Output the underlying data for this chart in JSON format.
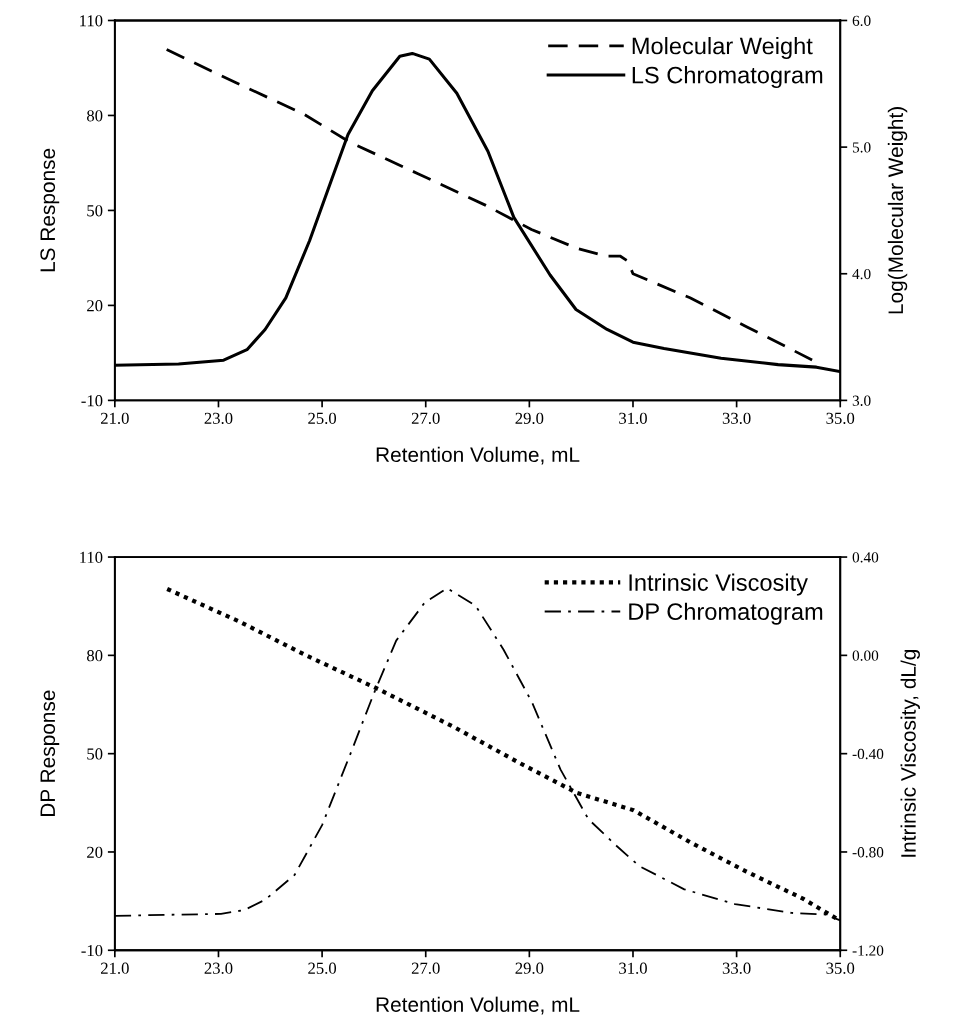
{
  "chart_data": [
    {
      "type": "line",
      "xlabel": "Retention Volume, mL",
      "ylabel": "LS Response",
      "y2label": "Log(Molecular Weight)",
      "legend": "top right",
      "grid": false,
      "marker": "none",
      "xlim": [
        21,
        35
      ],
      "xticks": [
        {
          "value": 21,
          "label": "21.0"
        },
        {
          "value": 23,
          "label": "23.0"
        },
        {
          "value": 25,
          "label": "25.0"
        },
        {
          "value": 27,
          "label": "27.0"
        },
        {
          "value": 29,
          "label": "29.0"
        },
        {
          "value": 31,
          "label": "31.0"
        },
        {
          "value": 33,
          "label": "33.0"
        },
        {
          "value": 35,
          "label": "35.0"
        }
      ],
      "ylim": [
        -10,
        110
      ],
      "yticks": [
        -10,
        20,
        50,
        80,
        110
      ],
      "y2lim": [
        3.0,
        6.0
      ],
      "y2ticks": [
        {
          "value": 3,
          "label": "3.0"
        },
        {
          "value": 4,
          "label": "4.0"
        },
        {
          "value": 5,
          "label": "5.0"
        },
        {
          "value": 6,
          "label": "6.0"
        }
      ],
      "series": [
        {
          "name": "Molecular Weight",
          "color": "#000000",
          "line_style": "dashed",
          "axis": "y2",
          "x": [
            22.0,
            23.33,
            24.65,
            25.53,
            26.85,
            28.16,
            29.04,
            29.92,
            30.47,
            30.75,
            30.9,
            31.0,
            32.1,
            33.2,
            34.6
          ],
          "values": [
            5.77,
            5.51,
            5.26,
            5.04,
            4.79,
            4.54,
            4.35,
            4.2,
            4.14,
            4.14,
            4.1,
            4.0,
            3.81,
            3.58,
            3.29
          ]
        },
        {
          "name": "LS Chromatogram",
          "color": "#000000",
          "line_style": "solid",
          "x": [
            21.0,
            22.23,
            23.1,
            23.55,
            23.9,
            24.3,
            24.76,
            25.2,
            25.5,
            25.97,
            26.5,
            26.74,
            27.07,
            27.6,
            28.2,
            28.7,
            29.4,
            29.9,
            30.5,
            31.0,
            31.6,
            32.7,
            33.8,
            34.54,
            35.0
          ],
          "values": [
            1.1,
            1.5,
            2.7,
            6,
            12.4,
            22.4,
            40.5,
            60.5,
            74,
            87.8,
            98.7,
            99.6,
            97.8,
            87,
            68.7,
            47.8,
            29.6,
            18.7,
            12.4,
            8.4,
            6.4,
            3.3,
            1.3,
            0.5,
            -0.9
          ]
        }
      ]
    },
    {
      "type": "line",
      "xlabel": "Retention Volume, mL",
      "ylabel": "DP Response",
      "y2label": "Intrinsic Viscosity, dL/g",
      "legend": "top right",
      "grid": false,
      "marker": "none",
      "xlim": [
        21,
        35
      ],
      "xticks": [
        {
          "value": 21,
          "label": "21.0"
        },
        {
          "value": 23,
          "label": "23.0"
        },
        {
          "value": 25,
          "label": "25.0"
        },
        {
          "value": 27,
          "label": "27.0"
        },
        {
          "value": 29,
          "label": "29.0"
        },
        {
          "value": 31,
          "label": "31.0"
        },
        {
          "value": 33,
          "label": "33.0"
        },
        {
          "value": 35,
          "label": "35.0"
        }
      ],
      "ylim": [
        -10,
        110
      ],
      "yticks": [
        -10,
        20,
        50,
        80,
        110
      ],
      "y2lim": [
        -1.2,
        0.4
      ],
      "y2ticks": [
        {
          "value": -1.2,
          "label": "-1.20"
        },
        {
          "value": -0.8,
          "label": "-0.80"
        },
        {
          "value": -0.4,
          "label": "-0.40"
        },
        {
          "value": 0,
          "label": "0.00"
        },
        {
          "value": 0.4,
          "label": "0.40"
        }
      ],
      "series": [
        {
          "name": "Intrinsic Viscosity",
          "color": "#000000",
          "line_style": "dotted",
          "axis": "y2",
          "x": [
            22.01,
            23.38,
            24.69,
            26.11,
            27.53,
            28.83,
            29.92,
            31.01,
            32.1,
            33.19,
            34.28,
            35.0
          ],
          "values": [
            0.27,
            0.14,
            0.0,
            -0.14,
            -0.29,
            -0.44,
            -0.56,
            -0.63,
            -0.76,
            -0.88,
            -0.99,
            -1.08
          ]
        },
        {
          "name": "DP Chromatogram",
          "color": "#000000",
          "line_style": "dashdot",
          "x": [
            21.0,
            22.29,
            23.05,
            23.5,
            23.9,
            24.47,
            25.0,
            25.56,
            26.0,
            26.43,
            26.98,
            27.41,
            27.96,
            28.5,
            29.05,
            29.6,
            30.14,
            30.68,
            31.12,
            31.99,
            32.97,
            34.06,
            34.72,
            35.0
          ],
          "values": [
            0.5,
            0.9,
            1.1,
            2.3,
            5.4,
            13,
            28.2,
            50.5,
            68.4,
            84.5,
            96.1,
            100.5,
            95.2,
            81.8,
            65.7,
            45.2,
            30,
            21.9,
            15.7,
            8.6,
            4.1,
            1.4,
            0.9,
            -0.9
          ]
        }
      ]
    }
  ]
}
